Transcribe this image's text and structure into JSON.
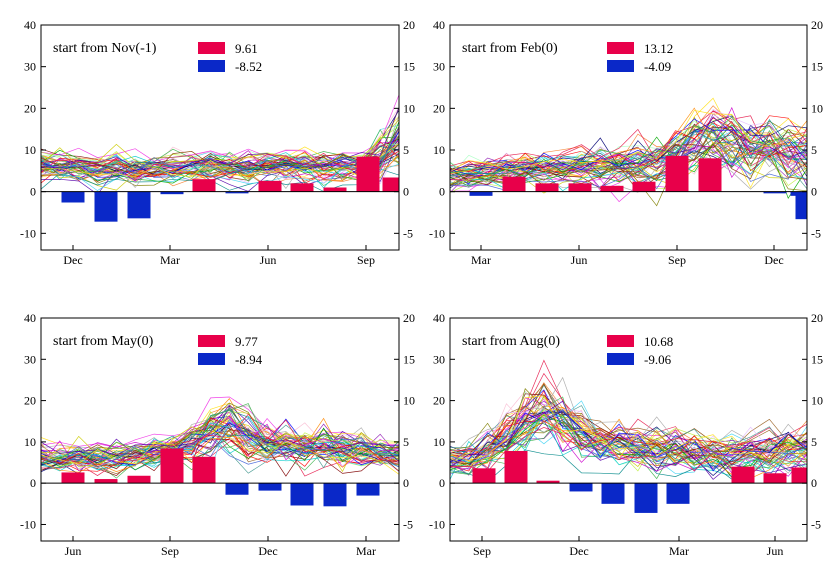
{
  "chart_data": [
    {
      "type": "line",
      "label": "start from Nov(-1)",
      "ylim_left": [
        -14,
        40
      ],
      "yticks_left": [
        "40",
        "30",
        "20",
        "10",
        "0",
        "-10"
      ],
      "ylim_right": [
        -7,
        20
      ],
      "yticks_right": [
        "20",
        "15",
        "10",
        "5",
        "0",
        "-5"
      ],
      "xtick_labels": [
        "Dec",
        "Mar",
        "Jun",
        "Sep"
      ],
      "legend": [
        {
          "value": "9.61",
          "color": "#e8004a"
        },
        {
          "value": "-8.52",
          "color": "#0a28c8"
        }
      ],
      "bars": [
        0,
        -1.3,
        -3.6,
        -3.2,
        -0.3,
        1.5,
        -0.2,
        1.3,
        1.0,
        0.5,
        4.2,
        1.7
      ],
      "line_profile": [
        6.5,
        6.0,
        5.5,
        5.5,
        5.5,
        5.0,
        5.5,
        5.5,
        6.0,
        6.0,
        5.5,
        5.5,
        6.0,
        6.0,
        6.0,
        5.5,
        6.0,
        6.0,
        8.0,
        13.0
      ],
      "line_spread": [
        2.0,
        2.0,
        2.0,
        2.0,
        2.0,
        2.0,
        2.0,
        2.0,
        2.0,
        2.0,
        2.0,
        2.0,
        2.0,
        2.0,
        2.0,
        2.0,
        2.0,
        2.0,
        3.0,
        4.5
      ],
      "line_count": 60
    },
    {
      "type": "line",
      "label": "start from Feb(0)",
      "ylim_left": [
        -14,
        40
      ],
      "yticks_left": [
        "40",
        "30",
        "20",
        "10",
        "0",
        "-10"
      ],
      "ylim_right": [
        -7,
        20
      ],
      "yticks_right": [
        "20",
        "15",
        "10",
        "5",
        "0",
        "-5"
      ],
      "xtick_labels": [
        "Mar",
        "Jun",
        "Sep",
        "Dec"
      ],
      "legend": [
        {
          "value": "13.12",
          "color": "#e8004a"
        },
        {
          "value": "-4.09",
          "color": "#0a28c8"
        }
      ],
      "bars": [
        0,
        -0.5,
        1.8,
        1.0,
        1.0,
        0.7,
        1.2,
        4.3,
        4.0,
        0,
        -0.2,
        -0.5,
        -3.3
      ],
      "line_profile": [
        4.0,
        4.0,
        4.5,
        5.0,
        5.5,
        5.5,
        6.0,
        6.0,
        6.5,
        6.0,
        6.5,
        7.0,
        9.0,
        12.0,
        13.5,
        12.0,
        10.5,
        10.0,
        9.5,
        9.0
      ],
      "line_spread": [
        2.0,
        2.0,
        2.0,
        2.0,
        2.0,
        2.0,
        2.0,
        2.0,
        2.5,
        2.5,
        3.0,
        3.0,
        3.5,
        4.0,
        4.5,
        4.5,
        4.0,
        4.0,
        4.0,
        4.0
      ],
      "line_count": 60
    },
    {
      "type": "line",
      "label": "start from May(0)",
      "ylim_left": [
        -14,
        40
      ],
      "yticks_left": [
        "40",
        "30",
        "20",
        "10",
        "0",
        "-10"
      ],
      "ylim_right": [
        -7,
        20
      ],
      "yticks_right": [
        "20",
        "15",
        "10",
        "5",
        "0",
        "-5"
      ],
      "xtick_labels": [
        "Jun",
        "Sep",
        "Dec",
        "Mar"
      ],
      "legend": [
        {
          "value": "9.77",
          "color": "#e8004a"
        },
        {
          "value": "-8.94",
          "color": "#0a28c8"
        }
      ],
      "bars": [
        0,
        1.3,
        0.5,
        0.9,
        4.2,
        3.2,
        -1.4,
        -0.9,
        -2.7,
        -2.8,
        -1.5,
        0
      ],
      "line_profile": [
        6.0,
        6.0,
        6.0,
        6.0,
        6.0,
        6.5,
        7.0,
        8.0,
        9.5,
        12.5,
        13.0,
        11.5,
        9.5,
        9.0,
        9.0,
        8.5,
        8.0,
        7.5,
        7.0,
        6.5
      ],
      "line_spread": [
        2.0,
        2.0,
        2.0,
        2.0,
        2.0,
        2.0,
        2.0,
        2.0,
        2.5,
        3.5,
        4.0,
        4.0,
        3.5,
        3.0,
        3.0,
        3.0,
        2.5,
        2.5,
        2.0,
        2.0
      ],
      "line_count": 60
    },
    {
      "type": "line",
      "label": "start from Aug(0)",
      "ylim_left": [
        -14,
        40
      ],
      "yticks_left": [
        "40",
        "30",
        "20",
        "10",
        "0",
        "-10"
      ],
      "ylim_right": [
        -7,
        20
      ],
      "yticks_right": [
        "20",
        "15",
        "10",
        "5",
        "0",
        "-5"
      ],
      "xtick_labels": [
        "Sep",
        "Dec",
        "Mar",
        "Jun"
      ],
      "legend": [
        {
          "value": "10.68",
          "color": "#e8004a"
        },
        {
          "value": "-9.06",
          "color": "#0a28c8"
        }
      ],
      "bars": [
        0,
        1.8,
        3.9,
        0.3,
        -1.0,
        -2.5,
        -3.6,
        -2.5,
        0,
        2.0,
        1.2,
        1.9,
        0.3
      ],
      "line_profile": [
        6.0,
        6.5,
        8.0,
        11.0,
        15.0,
        18.5,
        15.0,
        12.0,
        10.0,
        9.5,
        9.0,
        8.5,
        8.0,
        7.5,
        7.0,
        7.0,
        7.0,
        7.5,
        8.0,
        8.5
      ],
      "line_spread": [
        2.0,
        2.5,
        3.0,
        3.5,
        4.0,
        4.5,
        4.0,
        3.5,
        3.0,
        3.0,
        3.0,
        3.0,
        3.0,
        3.0,
        3.0,
        3.0,
        3.0,
        3.0,
        3.0,
        3.0
      ],
      "line_count": 60
    }
  ]
}
